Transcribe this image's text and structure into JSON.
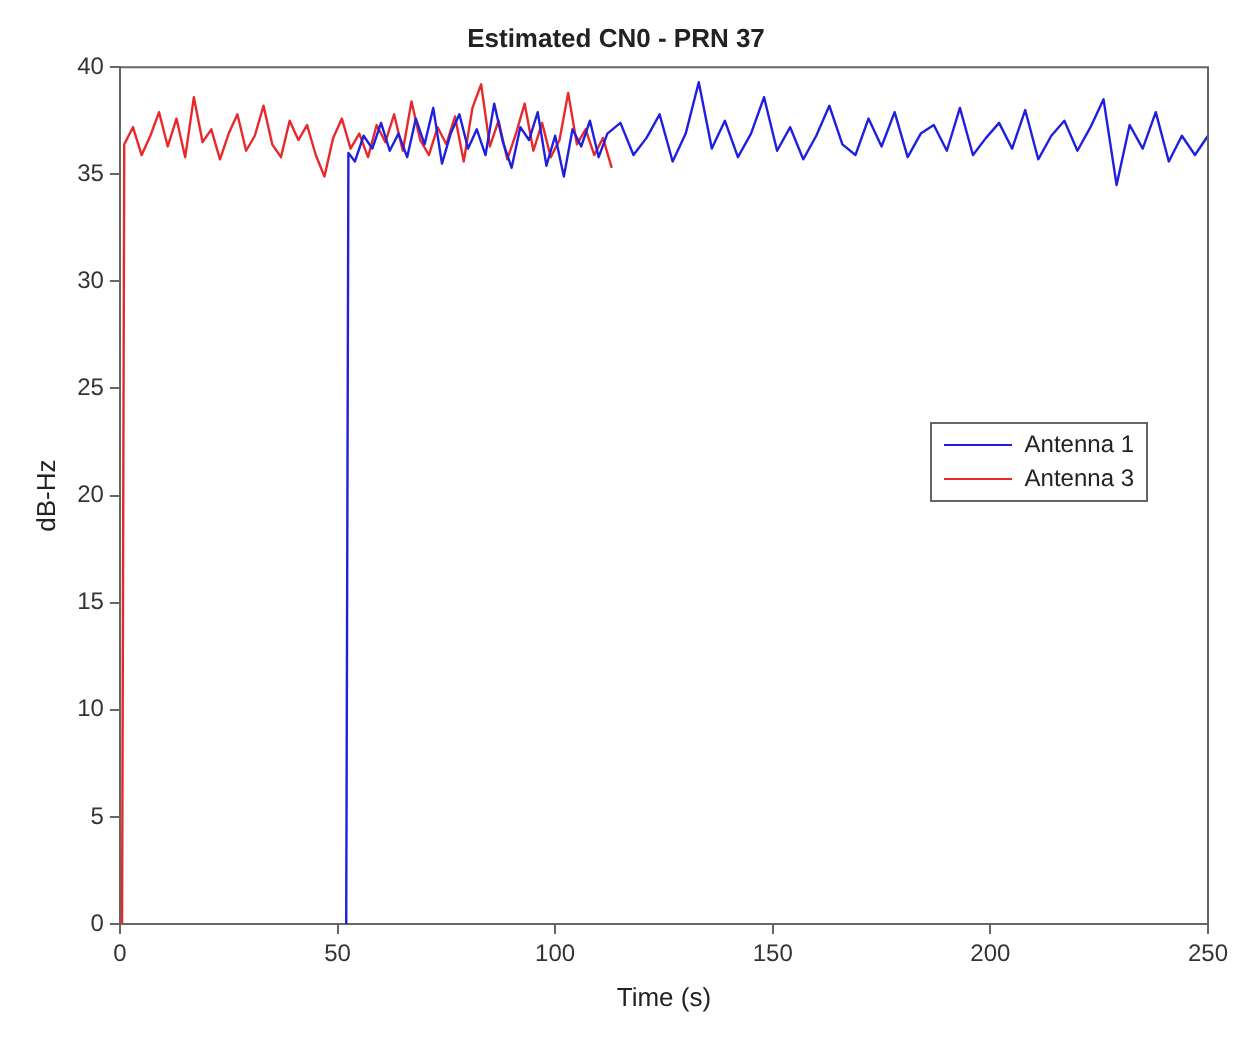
{
  "chart_data": {
    "type": "line",
    "title": "Estimated CN0 - PRN 37",
    "xlabel": "Time (s)",
    "ylabel": "dB-Hz",
    "xlim": [
      0,
      250
    ],
    "xticks": [
      0,
      50,
      100,
      150,
      200,
      250
    ],
    "ylim": [
      0,
      40
    ],
    "yticks": [
      0,
      5,
      10,
      15,
      20,
      25,
      30,
      35,
      40
    ],
    "grid": false,
    "legend": "right",
    "marker": "none",
    "line_style": "solid",
    "series": [
      {
        "name": "Antenna 1",
        "color": "#1f1fe0",
        "x": [
          52,
          52.5,
          54,
          56,
          58,
          60,
          62,
          64,
          66,
          68,
          70,
          72,
          74,
          76,
          78,
          80,
          82,
          84,
          86,
          88,
          90,
          92,
          94,
          96,
          98,
          100,
          102,
          104,
          106,
          108,
          110,
          112,
          115,
          118,
          121,
          124,
          127,
          130,
          133,
          136,
          139,
          142,
          145,
          148,
          151,
          154,
          157,
          160,
          163,
          166,
          169,
          172,
          175,
          178,
          181,
          184,
          187,
          190,
          193,
          196,
          199,
          202,
          205,
          208,
          211,
          214,
          217,
          220,
          223,
          226,
          229,
          232,
          235,
          238,
          241,
          244,
          247,
          250
        ],
        "values": [
          0,
          36,
          35.6,
          36.8,
          36.2,
          37.4,
          36.1,
          36.9,
          35.8,
          37.6,
          36.4,
          38.1,
          35.5,
          36.9,
          37.8,
          36.2,
          37.1,
          35.9,
          38.3,
          36.5,
          35.3,
          37.2,
          36.6,
          37.9,
          35.4,
          36.8,
          34.9,
          37.1,
          36.3,
          37.5,
          35.8,
          36.9,
          37.4,
          35.9,
          36.7,
          37.8,
          35.6,
          36.9,
          39.3,
          36.2,
          37.5,
          35.8,
          36.9,
          38.6,
          36.1,
          37.2,
          35.7,
          36.8,
          38.2,
          36.4,
          35.9,
          37.6,
          36.3,
          37.9,
          35.8,
          36.9,
          37.3,
          36.1,
          38.1,
          35.9,
          36.7,
          37.4,
          36.2,
          38.0,
          35.7,
          36.8,
          37.5,
          36.1,
          37.2,
          38.5,
          34.5,
          37.3,
          36.2,
          37.9,
          35.6,
          36.8,
          35.9,
          36.8
        ]
      },
      {
        "name": "Antenna 3",
        "color": "#e8282a",
        "x": [
          0.5,
          1,
          3,
          5,
          7,
          9,
          11,
          13,
          15,
          17,
          19,
          21,
          23,
          25,
          27,
          29,
          31,
          33,
          35,
          37,
          39,
          41,
          43,
          45,
          47,
          49,
          51,
          53,
          55,
          57,
          59,
          61,
          63,
          65,
          67,
          69,
          71,
          73,
          75,
          77,
          79,
          81,
          83,
          85,
          87,
          89,
          91,
          93,
          95,
          97,
          99,
          101,
          103,
          105,
          107,
          109,
          111,
          113
        ],
        "values": [
          0,
          36.4,
          37.2,
          35.9,
          36.8,
          37.9,
          36.3,
          37.6,
          35.8,
          38.6,
          36.5,
          37.1,
          35.7,
          36.9,
          37.8,
          36.1,
          36.8,
          38.2,
          36.4,
          35.8,
          37.5,
          36.6,
          37.3,
          35.9,
          34.9,
          36.7,
          37.6,
          36.2,
          36.9,
          35.8,
          37.3,
          36.5,
          37.8,
          36.1,
          38.4,
          36.6,
          35.9,
          37.2,
          36.4,
          37.7,
          35.6,
          38.1,
          39.2,
          36.3,
          37.5,
          35.7,
          36.9,
          38.3,
          36.1,
          37.4,
          35.8,
          36.6,
          38.8,
          36.4,
          37.1,
          35.9,
          36.7,
          35.3
        ]
      }
    ]
  }
}
